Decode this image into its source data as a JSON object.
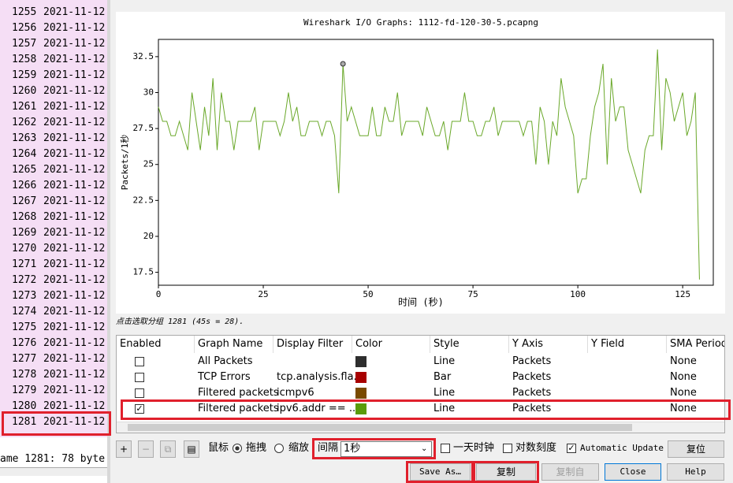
{
  "packet_list": {
    "rows": [
      {
        "no": "1255",
        "time": "2021-11-12"
      },
      {
        "no": "1256",
        "time": "2021-11-12"
      },
      {
        "no": "1257",
        "time": "2021-11-12"
      },
      {
        "no": "1258",
        "time": "2021-11-12"
      },
      {
        "no": "1259",
        "time": "2021-11-12"
      },
      {
        "no": "1260",
        "time": "2021-11-12"
      },
      {
        "no": "1261",
        "time": "2021-11-12"
      },
      {
        "no": "1262",
        "time": "2021-11-12"
      },
      {
        "no": "1263",
        "time": "2021-11-12"
      },
      {
        "no": "1264",
        "time": "2021-11-12"
      },
      {
        "no": "1265",
        "time": "2021-11-12"
      },
      {
        "no": "1266",
        "time": "2021-11-12"
      },
      {
        "no": "1267",
        "time": "2021-11-12"
      },
      {
        "no": "1268",
        "time": "2021-11-12"
      },
      {
        "no": "1269",
        "time": "2021-11-12"
      },
      {
        "no": "1270",
        "time": "2021-11-12"
      },
      {
        "no": "1271",
        "time": "2021-11-12"
      },
      {
        "no": "1272",
        "time": "2021-11-12"
      },
      {
        "no": "1273",
        "time": "2021-11-12"
      },
      {
        "no": "1274",
        "time": "2021-11-12"
      },
      {
        "no": "1275",
        "time": "2021-11-12"
      },
      {
        "no": "1276",
        "time": "2021-11-12"
      },
      {
        "no": "1277",
        "time": "2021-11-12"
      },
      {
        "no": "1278",
        "time": "2021-11-12"
      },
      {
        "no": "1279",
        "time": "2021-11-12"
      },
      {
        "no": "1280",
        "time": "2021-11-12"
      },
      {
        "no": "1281",
        "time": "2021-11-12"
      }
    ],
    "status": "ame 1281: 78 byte"
  },
  "chart_data": {
    "type": "line",
    "title": "Wireshark I/O Graphs: 1112-fd-120-30-5.pcapng",
    "xlabel": "时间 (秒)",
    "ylabel": "Packets/1秒",
    "color": "#6aa82a",
    "selected_point": 44,
    "x": [
      0,
      1,
      2,
      3,
      4,
      5,
      6,
      7,
      8,
      9,
      10,
      11,
      12,
      13,
      14,
      15,
      16,
      17,
      18,
      19,
      20,
      21,
      22,
      23,
      24,
      25,
      26,
      27,
      28,
      29,
      30,
      31,
      32,
      33,
      34,
      35,
      36,
      37,
      38,
      39,
      40,
      41,
      42,
      43,
      44,
      45,
      46,
      47,
      48,
      49,
      50,
      51,
      52,
      53,
      54,
      55,
      56,
      57,
      58,
      59,
      60,
      61,
      62,
      63,
      64,
      65,
      66,
      67,
      68,
      69,
      70,
      71,
      72,
      73,
      74,
      75,
      76,
      77,
      78,
      79,
      80,
      81,
      82,
      83,
      84,
      85,
      86,
      87,
      88,
      89,
      90,
      91,
      92,
      93,
      94,
      95,
      96,
      97,
      98,
      99,
      100,
      101,
      102,
      103,
      104,
      105,
      106,
      107,
      108,
      109,
      110,
      111,
      112,
      113,
      114,
      115,
      116,
      117,
      118,
      119,
      120,
      121,
      122,
      123,
      124,
      125,
      126,
      127,
      128,
      129
    ],
    "values": [
      29,
      28,
      28,
      27,
      27,
      28,
      27,
      26,
      30,
      28,
      26,
      29,
      27,
      31,
      26,
      30,
      28,
      28,
      26,
      28,
      28,
      28,
      28,
      29,
      26,
      28,
      28,
      28,
      28,
      27,
      28,
      30,
      28,
      29,
      27,
      27,
      28,
      28,
      28,
      27,
      28,
      28,
      27,
      23,
      32,
      28,
      29,
      28,
      27,
      27,
      27,
      29,
      27,
      27,
      29,
      28,
      28,
      30,
      27,
      28,
      28,
      28,
      28,
      27,
      29,
      28,
      27,
      27,
      28,
      26,
      28,
      28,
      28,
      30,
      28,
      28,
      27,
      27,
      28,
      28,
      29,
      27,
      28,
      28,
      28,
      28,
      28,
      27,
      28,
      28,
      25,
      29,
      28,
      25,
      28,
      27,
      31,
      29,
      28,
      27,
      23,
      24,
      24,
      27,
      29,
      30,
      32,
      25,
      31,
      28,
      29,
      29,
      26,
      25,
      24,
      23,
      26,
      27,
      27,
      33,
      26,
      31,
      30,
      28,
      29,
      30,
      27,
      28,
      30,
      17
    ],
    "xlim": [
      0,
      132.3
    ],
    "ylim": [
      16.6,
      33.7
    ],
    "xticks": [
      0,
      25,
      50,
      75,
      100,
      125
    ],
    "yticks": [
      17.5,
      20,
      22.5,
      25,
      27.5,
      30,
      32.5
    ],
    "annotation": "点击选取分组 1281 (45s = 28)."
  },
  "table": {
    "headers": [
      "Enabled",
      "Graph Name",
      "Display Filter",
      "Color",
      "Style",
      "Y Axis",
      "Y Field",
      "SMA Period"
    ],
    "rows": [
      {
        "enabled": false,
        "name": "All Packets",
        "color": "#2e2e2e",
        "style": "Line",
        "y_axis": "Packets",
        "sma": "None"
      },
      {
        "enabled": false,
        "name": "TCP Errors",
        "filter": "tcp.analysis.fla...",
        "color": "#a80000",
        "style": "Bar",
        "y_axis": "Packets",
        "sma": "None"
      },
      {
        "enabled": false,
        "name": "Filtered packets",
        "filter": "icmpv6",
        "color": "#7a4b00",
        "style": "Line",
        "y_axis": "Packets",
        "sma": "None"
      },
      {
        "enabled": true,
        "name": "Filtered packets",
        "filter": "ipv6.addr == ...",
        "color": "#5a9c0a",
        "style": "Line",
        "y_axis": "Packets",
        "sma": "None"
      }
    ]
  },
  "controls": {
    "mouse_label": "鼠标",
    "drag": "拖拽",
    "zoom": "缩放",
    "interval_label": "间隔",
    "interval": "1秒",
    "day_clock": "一天时钟",
    "log_scale": "对数刻度",
    "auto_update": "Automatic Update",
    "reset": "复位",
    "save_as": "Save As…",
    "copy": "复制",
    "copy_from": "复制自",
    "close": "Close",
    "help": "Help"
  }
}
